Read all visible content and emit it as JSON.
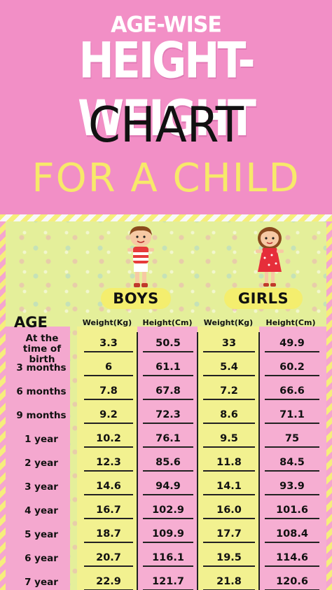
{
  "header": {
    "line1": "AGE-WISE",
    "line2": "HEIGHT-WEIGHT",
    "line3": "CHART",
    "line4": "FOR A CHILD"
  },
  "table": {
    "boys_label": "BOYS",
    "girls_label": "GIRLS",
    "age_header": "AGE",
    "columns": [
      "Weight(Kg)",
      "Height(Cm)",
      "Weight(Kg)",
      "Height(Cm)"
    ],
    "rows": [
      {
        "age": "At the time of birth",
        "boys_weight": "3.3",
        "boys_height": "50.5",
        "girls_weight": "33",
        "girls_height": "49.9"
      },
      {
        "age": "3 months",
        "boys_weight": "6",
        "boys_height": "61.1",
        "girls_weight": "5.4",
        "girls_height": "60.2"
      },
      {
        "age": "6 months",
        "boys_weight": "7.8",
        "boys_height": "67.8",
        "girls_weight": "7.2",
        "girls_height": "66.6"
      },
      {
        "age": "9 months",
        "boys_weight": "9.2",
        "boys_height": "72.3",
        "girls_weight": "8.6",
        "girls_height": "71.1"
      },
      {
        "age": "1 year",
        "boys_weight": "10.2",
        "boys_height": "76.1",
        "girls_weight": "9.5",
        "girls_height": "75"
      },
      {
        "age": "2 year",
        "boys_weight": "12.3",
        "boys_height": "85.6",
        "girls_weight": "11.8",
        "girls_height": "84.5"
      },
      {
        "age": "3 year",
        "boys_weight": "14.6",
        "boys_height": "94.9",
        "girls_weight": "14.1",
        "girls_height": "93.9"
      },
      {
        "age": "4 year",
        "boys_weight": "16.7",
        "boys_height": "102.9",
        "girls_weight": "16.0",
        "girls_height": "101.6"
      },
      {
        "age": "5 year",
        "boys_weight": "18.7",
        "boys_height": "109.9",
        "girls_weight": "17.7",
        "girls_height": "108.4"
      },
      {
        "age": "6 year",
        "boys_weight": "20.7",
        "boys_height": "116.1",
        "girls_weight": "19.5",
        "girls_height": "114.6"
      },
      {
        "age": "7 year",
        "boys_weight": "22.9",
        "boys_height": "121.7",
        "girls_weight": "21.8",
        "girls_height": "120.6"
      }
    ]
  },
  "icons": {
    "boy": "boy-illustration-icon",
    "girl": "girl-illustration-icon"
  },
  "colors": {
    "header_bg": "#f28fc6",
    "panel_bg": "#e4ef9a",
    "title_yellow": "#f7e96a",
    "pill_yellow": "#f4ee6e",
    "pink_column": "#f6aed2",
    "yellow_column": "#f2f190"
  }
}
